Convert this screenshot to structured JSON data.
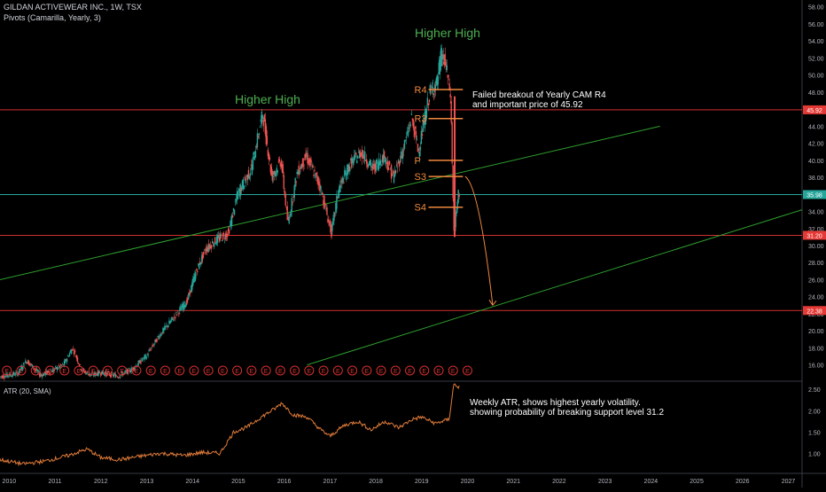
{
  "header": {
    "symbol_line": "GILDAN ACTIVEWEAR INC., 1W, TSX",
    "indicator_line": "Pivots (Camarilla, Yearly, 3)"
  },
  "atr_panel": {
    "label": "ATR (20, SMA)"
  },
  "annotations": {
    "higher_high_1": "Higher High",
    "higher_high_2": "Higher High",
    "breakout_note_1": "Failed breakout of Yearly CAM R4",
    "breakout_note_2": "and important price of 45.92",
    "atr_note_1": "Weekly ATR, shows highest yearly volatility.",
    "atr_note_2": "showing probability of breaking support level 31.2",
    "pivot_labels": [
      "R4",
      "R3",
      "P",
      "S3",
      "S4"
    ],
    "earnings_marker": "E"
  },
  "colors": {
    "background": "#000000",
    "candle_up": "#26a69a",
    "candle_down": "#ef5350",
    "support_line": "#d32f2f",
    "current_line": "#26a69a",
    "trend_line": "#2e9e2e",
    "pivot_color": "#f0883e",
    "atr_line": "#e07b39",
    "annotation_green": "#4caf50",
    "label_red": "#e53935",
    "label_teal": "#26a69a",
    "text": "#d1d4dc",
    "axis_text": "#b2b5be"
  },
  "chart_data": [
    {
      "type": "candlestick",
      "title": "GILDAN ACTIVEWEAR INC., 1W, TSX",
      "x_ticks": [
        "2010",
        "2011",
        "2012",
        "2013",
        "2014",
        "2015",
        "2016",
        "2017",
        "2018",
        "2019",
        "2020",
        "2021",
        "2022",
        "2023",
        "2024",
        "2025",
        "2026",
        "2027"
      ],
      "y_ticks": [
        "16.00",
        "18.00",
        "20.00",
        "22.00",
        "24.00",
        "26.00",
        "28.00",
        "30.00",
        "32.00",
        "34.00",
        "36.00",
        "38.00",
        "40.00",
        "42.00",
        "44.00",
        "46.00",
        "48.00",
        "50.00",
        "52.00",
        "54.00",
        "56.00",
        "58.00"
      ],
      "ylim": [
        14.3,
        58.8
      ],
      "xlim": [
        2009.8,
        2027.3
      ],
      "price_path": [
        [
          2009.8,
          14.6
        ],
        [
          2010.2,
          15.0
        ],
        [
          2010.4,
          16.5
        ],
        [
          2010.7,
          14.8
        ],
        [
          2010.9,
          15.2
        ],
        [
          2011.2,
          16.0
        ],
        [
          2011.4,
          18.0
        ],
        [
          2011.6,
          15.4
        ],
        [
          2011.8,
          14.8
        ],
        [
          2012.0,
          15.1
        ],
        [
          2012.4,
          14.7
        ],
        [
          2012.7,
          15.5
        ],
        [
          2013.0,
          17.0
        ],
        [
          2013.3,
          19.5
        ],
        [
          2013.6,
          21.5
        ],
        [
          2013.9,
          23.5
        ],
        [
          2014.1,
          27.0
        ],
        [
          2014.3,
          29.5
        ],
        [
          2014.5,
          30.5
        ],
        [
          2014.8,
          31.5
        ],
        [
          2015.0,
          36.0
        ],
        [
          2015.3,
          39.0
        ],
        [
          2015.55,
          45.5
        ],
        [
          2015.75,
          38.0
        ],
        [
          2015.95,
          40.0
        ],
        [
          2016.1,
          32.5
        ],
        [
          2016.3,
          38.5
        ],
        [
          2016.5,
          40.5
        ],
        [
          2016.8,
          37.0
        ],
        [
          2017.05,
          31.5
        ],
        [
          2017.2,
          36.5
        ],
        [
          2017.45,
          39.5
        ],
        [
          2017.7,
          41.0
        ],
        [
          2017.95,
          39.0
        ],
        [
          2018.2,
          40.5
        ],
        [
          2018.4,
          38.0
        ],
        [
          2018.6,
          41.0
        ],
        [
          2018.8,
          45.0
        ],
        [
          2018.95,
          41.0
        ],
        [
          2019.05,
          44.0
        ],
        [
          2019.2,
          48.0
        ],
        [
          2019.35,
          49.0
        ],
        [
          2019.45,
          52.5
        ],
        [
          2019.55,
          51.0
        ],
        [
          2019.65,
          47.5
        ],
        [
          2019.72,
          31.8
        ],
        [
          2019.78,
          34.0
        ],
        [
          2019.82,
          35.98
        ]
      ],
      "support_levels": [
        45.92,
        35.98,
        31.2,
        22.38
      ],
      "price_labels": [
        "45.92",
        "35.98",
        "31.20",
        "22.38"
      ],
      "trend_lines": [
        {
          "x1": 2009.8,
          "y1": 26.0,
          "x2": 2024.2,
          "y2": 44.0
        },
        {
          "x1": 2016.5,
          "y1": 16.0,
          "x2": 2027.3,
          "y2": 34.2
        }
      ],
      "pivots": [
        {
          "name": "R4",
          "value": 48.3
        },
        {
          "name": "R3",
          "value": 44.9
        },
        {
          "name": "P",
          "value": 40.0
        },
        {
          "name": "S3",
          "value": 38.1
        },
        {
          "name": "S4",
          "value": 34.5
        }
      ],
      "earnings_marker_count": 33
    },
    {
      "type": "line",
      "title": "ATR (20, SMA)",
      "y_ticks": [
        "1.00",
        "1.50",
        "2.00",
        "2.50"
      ],
      "ylim": [
        0.55,
        2.65
      ],
      "atr_path": [
        [
          2009.8,
          0.85
        ],
        [
          2010.3,
          0.75
        ],
        [
          2010.8,
          0.82
        ],
        [
          2011.3,
          0.95
        ],
        [
          2011.7,
          1.1
        ],
        [
          2012.0,
          0.9
        ],
        [
          2012.4,
          0.85
        ],
        [
          2012.8,
          0.92
        ],
        [
          2013.3,
          1.0
        ],
        [
          2013.8,
          0.95
        ],
        [
          2014.2,
          1.02
        ],
        [
          2014.6,
          1.0
        ],
        [
          2014.9,
          1.5
        ],
        [
          2015.2,
          1.62
        ],
        [
          2015.5,
          1.85
        ],
        [
          2015.8,
          2.05
        ],
        [
          2015.95,
          2.18
        ],
        [
          2016.2,
          1.9
        ],
        [
          2016.5,
          1.85
        ],
        [
          2016.8,
          1.55
        ],
        [
          2017.0,
          1.4
        ],
        [
          2017.3,
          1.65
        ],
        [
          2017.6,
          1.75
        ],
        [
          2017.9,
          1.55
        ],
        [
          2018.2,
          1.75
        ],
        [
          2018.5,
          1.6
        ],
        [
          2018.8,
          1.8
        ],
        [
          2019.0,
          1.85
        ],
        [
          2019.3,
          1.7
        ],
        [
          2019.6,
          1.8
        ],
        [
          2019.7,
          2.62
        ],
        [
          2019.82,
          2.55
        ]
      ]
    }
  ]
}
